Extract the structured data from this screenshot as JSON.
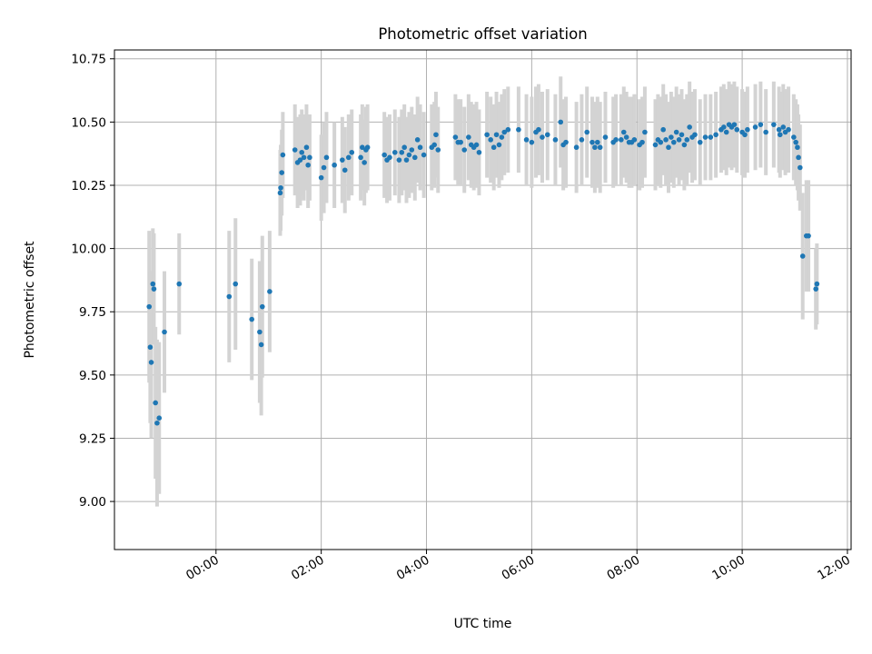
{
  "chart_data": {
    "type": "scatter",
    "title": "Photometric offset variation",
    "xlabel": "UTC time",
    "ylabel": "Photometric offset",
    "x_ticks": [
      "00:00",
      "02:00",
      "04:00",
      "06:00",
      "08:00",
      "10:00",
      "12:00"
    ],
    "x_tick_hours": [
      0,
      2,
      4,
      6,
      8,
      10,
      12
    ],
    "y_ticks": [
      "9.00",
      "9.25",
      "9.50",
      "9.75",
      "10.00",
      "10.25",
      "10.50",
      "10.75"
    ],
    "y_tick_values": [
      9.0,
      9.25,
      9.5,
      9.75,
      10.0,
      10.25,
      10.5,
      10.75
    ],
    "xlim_hours": [
      -1.93,
      12.07
    ],
    "ylim": [
      8.81,
      10.785
    ],
    "grid": true,
    "series_color": "#1f77b4",
    "errorbar_color": "#d3d3d3",
    "points": [
      {
        "t": -1.27,
        "y": 9.77,
        "e": 0.3
      },
      {
        "t": -1.25,
        "y": 9.61,
        "e": 0.3
      },
      {
        "t": -1.23,
        "y": 9.55,
        "e": 0.3
      },
      {
        "t": -1.2,
        "y": 9.86,
        "e": 0.22
      },
      {
        "t": -1.18,
        "y": 9.84,
        "e": 0.22
      },
      {
        "t": -1.15,
        "y": 9.39,
        "e": 0.3
      },
      {
        "t": -1.12,
        "y": 9.31,
        "e": 0.33
      },
      {
        "t": -1.08,
        "y": 9.33,
        "e": 0.3
      },
      {
        "t": -0.98,
        "y": 9.67,
        "e": 0.24
      },
      {
        "t": -0.7,
        "y": 9.86,
        "e": 0.2
      },
      {
        "t": 0.25,
        "y": 9.81,
        "e": 0.26
      },
      {
        "t": 0.37,
        "y": 9.86,
        "e": 0.26
      },
      {
        "t": 0.68,
        "y": 9.72,
        "e": 0.24
      },
      {
        "t": 0.83,
        "y": 9.67,
        "e": 0.28
      },
      {
        "t": 0.86,
        "y": 9.62,
        "e": 0.28
      },
      {
        "t": 0.88,
        "y": 9.77,
        "e": 0.28
      },
      {
        "t": 1.02,
        "y": 9.83,
        "e": 0.24
      },
      {
        "t": 1.22,
        "y": 10.22,
        "e": 0.17
      },
      {
        "t": 1.23,
        "y": 10.24,
        "e": 0.17
      },
      {
        "t": 1.25,
        "y": 10.3,
        "e": 0.17
      },
      {
        "t": 1.27,
        "y": 10.37,
        "e": 0.17
      },
      {
        "t": 1.5,
        "y": 10.39,
        "e": 0.18
      },
      {
        "t": 1.55,
        "y": 10.34,
        "e": 0.18
      },
      {
        "t": 1.6,
        "y": 10.35,
        "e": 0.18
      },
      {
        "t": 1.63,
        "y": 10.38,
        "e": 0.17
      },
      {
        "t": 1.67,
        "y": 10.36,
        "e": 0.17
      },
      {
        "t": 1.72,
        "y": 10.4,
        "e": 0.17
      },
      {
        "t": 1.75,
        "y": 10.33,
        "e": 0.17
      },
      {
        "t": 1.78,
        "y": 10.36,
        "e": 0.17
      },
      {
        "t": 2.0,
        "y": 10.28,
        "e": 0.17
      },
      {
        "t": 2.05,
        "y": 10.32,
        "e": 0.18
      },
      {
        "t": 2.1,
        "y": 10.36,
        "e": 0.18
      },
      {
        "t": 2.25,
        "y": 10.33,
        "e": 0.17
      },
      {
        "t": 2.4,
        "y": 10.35,
        "e": 0.17
      },
      {
        "t": 2.45,
        "y": 10.31,
        "e": 0.17
      },
      {
        "t": 2.52,
        "y": 10.36,
        "e": 0.17
      },
      {
        "t": 2.58,
        "y": 10.38,
        "e": 0.17
      },
      {
        "t": 2.75,
        "y": 10.36,
        "e": 0.17
      },
      {
        "t": 2.78,
        "y": 10.4,
        "e": 0.17
      },
      {
        "t": 2.82,
        "y": 10.34,
        "e": 0.17
      },
      {
        "t": 2.85,
        "y": 10.39,
        "e": 0.17
      },
      {
        "t": 2.88,
        "y": 10.4,
        "e": 0.17
      },
      {
        "t": 3.2,
        "y": 10.37,
        "e": 0.17
      },
      {
        "t": 3.25,
        "y": 10.35,
        "e": 0.17
      },
      {
        "t": 3.3,
        "y": 10.36,
        "e": 0.17
      },
      {
        "t": 3.4,
        "y": 10.38,
        "e": 0.17
      },
      {
        "t": 3.48,
        "y": 10.35,
        "e": 0.17
      },
      {
        "t": 3.53,
        "y": 10.38,
        "e": 0.17
      },
      {
        "t": 3.58,
        "y": 10.4,
        "e": 0.17
      },
      {
        "t": 3.62,
        "y": 10.35,
        "e": 0.17
      },
      {
        "t": 3.67,
        "y": 10.37,
        "e": 0.17
      },
      {
        "t": 3.72,
        "y": 10.39,
        "e": 0.17
      },
      {
        "t": 3.78,
        "y": 10.36,
        "e": 0.17
      },
      {
        "t": 3.83,
        "y": 10.43,
        "e": 0.17
      },
      {
        "t": 3.88,
        "y": 10.4,
        "e": 0.17
      },
      {
        "t": 3.95,
        "y": 10.37,
        "e": 0.17
      },
      {
        "t": 4.1,
        "y": 10.4,
        "e": 0.17
      },
      {
        "t": 4.15,
        "y": 10.41,
        "e": 0.17
      },
      {
        "t": 4.18,
        "y": 10.45,
        "e": 0.17
      },
      {
        "t": 4.22,
        "y": 10.39,
        "e": 0.17
      },
      {
        "t": 4.55,
        "y": 10.44,
        "e": 0.17
      },
      {
        "t": 4.6,
        "y": 10.42,
        "e": 0.17
      },
      {
        "t": 4.65,
        "y": 10.42,
        "e": 0.17
      },
      {
        "t": 4.72,
        "y": 10.39,
        "e": 0.17
      },
      {
        "t": 4.8,
        "y": 10.44,
        "e": 0.17
      },
      {
        "t": 4.85,
        "y": 10.41,
        "e": 0.17
      },
      {
        "t": 4.9,
        "y": 10.4,
        "e": 0.17
      },
      {
        "t": 4.95,
        "y": 10.41,
        "e": 0.17
      },
      {
        "t": 5.0,
        "y": 10.38,
        "e": 0.17
      },
      {
        "t": 5.15,
        "y": 10.45,
        "e": 0.17
      },
      {
        "t": 5.22,
        "y": 10.43,
        "e": 0.17
      },
      {
        "t": 5.28,
        "y": 10.4,
        "e": 0.17
      },
      {
        "t": 5.33,
        "y": 10.45,
        "e": 0.17
      },
      {
        "t": 5.38,
        "y": 10.41,
        "e": 0.17
      },
      {
        "t": 5.43,
        "y": 10.44,
        "e": 0.17
      },
      {
        "t": 5.48,
        "y": 10.46,
        "e": 0.17
      },
      {
        "t": 5.55,
        "y": 10.47,
        "e": 0.17
      },
      {
        "t": 5.75,
        "y": 10.47,
        "e": 0.17
      },
      {
        "t": 5.9,
        "y": 10.43,
        "e": 0.18
      },
      {
        "t": 6.0,
        "y": 10.42,
        "e": 0.18
      },
      {
        "t": 6.08,
        "y": 10.46,
        "e": 0.18
      },
      {
        "t": 6.13,
        "y": 10.47,
        "e": 0.18
      },
      {
        "t": 6.2,
        "y": 10.44,
        "e": 0.18
      },
      {
        "t": 6.3,
        "y": 10.45,
        "e": 0.18
      },
      {
        "t": 6.45,
        "y": 10.43,
        "e": 0.18
      },
      {
        "t": 6.55,
        "y": 10.5,
        "e": 0.18
      },
      {
        "t": 6.6,
        "y": 10.41,
        "e": 0.18
      },
      {
        "t": 6.65,
        "y": 10.42,
        "e": 0.18
      },
      {
        "t": 6.85,
        "y": 10.4,
        "e": 0.18
      },
      {
        "t": 6.95,
        "y": 10.43,
        "e": 0.18
      },
      {
        "t": 7.05,
        "y": 10.46,
        "e": 0.18
      },
      {
        "t": 7.15,
        "y": 10.42,
        "e": 0.18
      },
      {
        "t": 7.2,
        "y": 10.4,
        "e": 0.18
      },
      {
        "t": 7.25,
        "y": 10.42,
        "e": 0.18
      },
      {
        "t": 7.3,
        "y": 10.4,
        "e": 0.18
      },
      {
        "t": 7.4,
        "y": 10.44,
        "e": 0.18
      },
      {
        "t": 7.55,
        "y": 10.42,
        "e": 0.18
      },
      {
        "t": 7.6,
        "y": 10.43,
        "e": 0.18
      },
      {
        "t": 7.7,
        "y": 10.43,
        "e": 0.18
      },
      {
        "t": 7.75,
        "y": 10.46,
        "e": 0.18
      },
      {
        "t": 7.8,
        "y": 10.44,
        "e": 0.18
      },
      {
        "t": 7.85,
        "y": 10.42,
        "e": 0.18
      },
      {
        "t": 7.9,
        "y": 10.42,
        "e": 0.18
      },
      {
        "t": 7.95,
        "y": 10.43,
        "e": 0.18
      },
      {
        "t": 8.05,
        "y": 10.41,
        "e": 0.18
      },
      {
        "t": 8.1,
        "y": 10.42,
        "e": 0.18
      },
      {
        "t": 8.15,
        "y": 10.46,
        "e": 0.18
      },
      {
        "t": 8.35,
        "y": 10.41,
        "e": 0.18
      },
      {
        "t": 8.4,
        "y": 10.43,
        "e": 0.18
      },
      {
        "t": 8.45,
        "y": 10.42,
        "e": 0.18
      },
      {
        "t": 8.5,
        "y": 10.47,
        "e": 0.18
      },
      {
        "t": 8.55,
        "y": 10.43,
        "e": 0.18
      },
      {
        "t": 8.6,
        "y": 10.4,
        "e": 0.18
      },
      {
        "t": 8.65,
        "y": 10.44,
        "e": 0.18
      },
      {
        "t": 8.7,
        "y": 10.42,
        "e": 0.18
      },
      {
        "t": 8.75,
        "y": 10.46,
        "e": 0.18
      },
      {
        "t": 8.8,
        "y": 10.43,
        "e": 0.18
      },
      {
        "t": 8.85,
        "y": 10.45,
        "e": 0.18
      },
      {
        "t": 8.9,
        "y": 10.41,
        "e": 0.18
      },
      {
        "t": 8.95,
        "y": 10.43,
        "e": 0.18
      },
      {
        "t": 9.0,
        "y": 10.48,
        "e": 0.18
      },
      {
        "t": 9.05,
        "y": 10.44,
        "e": 0.18
      },
      {
        "t": 9.1,
        "y": 10.45,
        "e": 0.18
      },
      {
        "t": 9.2,
        "y": 10.42,
        "e": 0.17
      },
      {
        "t": 9.3,
        "y": 10.44,
        "e": 0.17
      },
      {
        "t": 9.4,
        "y": 10.44,
        "e": 0.17
      },
      {
        "t": 9.5,
        "y": 10.45,
        "e": 0.17
      },
      {
        "t": 9.6,
        "y": 10.47,
        "e": 0.17
      },
      {
        "t": 9.65,
        "y": 10.48,
        "e": 0.17
      },
      {
        "t": 9.7,
        "y": 10.46,
        "e": 0.17
      },
      {
        "t": 9.75,
        "y": 10.49,
        "e": 0.17
      },
      {
        "t": 9.8,
        "y": 10.48,
        "e": 0.17
      },
      {
        "t": 9.85,
        "y": 10.49,
        "e": 0.17
      },
      {
        "t": 9.9,
        "y": 10.47,
        "e": 0.17
      },
      {
        "t": 10.0,
        "y": 10.46,
        "e": 0.17
      },
      {
        "t": 10.05,
        "y": 10.45,
        "e": 0.17
      },
      {
        "t": 10.1,
        "y": 10.47,
        "e": 0.17
      },
      {
        "t": 10.25,
        "y": 10.48,
        "e": 0.17
      },
      {
        "t": 10.35,
        "y": 10.49,
        "e": 0.17
      },
      {
        "t": 10.45,
        "y": 10.46,
        "e": 0.17
      },
      {
        "t": 10.6,
        "y": 10.49,
        "e": 0.17
      },
      {
        "t": 10.7,
        "y": 10.47,
        "e": 0.17
      },
      {
        "t": 10.72,
        "y": 10.45,
        "e": 0.17
      },
      {
        "t": 10.78,
        "y": 10.48,
        "e": 0.17
      },
      {
        "t": 10.82,
        "y": 10.46,
        "e": 0.17
      },
      {
        "t": 10.88,
        "y": 10.47,
        "e": 0.17
      },
      {
        "t": 10.98,
        "y": 10.44,
        "e": 0.17
      },
      {
        "t": 11.02,
        "y": 10.42,
        "e": 0.17
      },
      {
        "t": 11.05,
        "y": 10.4,
        "e": 0.17
      },
      {
        "t": 11.07,
        "y": 10.36,
        "e": 0.17
      },
      {
        "t": 11.1,
        "y": 10.32,
        "e": 0.17
      },
      {
        "t": 11.15,
        "y": 9.97,
        "e": 0.25
      },
      {
        "t": 11.22,
        "y": 10.05,
        "e": 0.22
      },
      {
        "t": 11.26,
        "y": 10.05,
        "e": 0.22
      },
      {
        "t": 11.4,
        "y": 9.84,
        "e": 0.16
      },
      {
        "t": 11.42,
        "y": 9.86,
        "e": 0.16
      }
    ]
  }
}
